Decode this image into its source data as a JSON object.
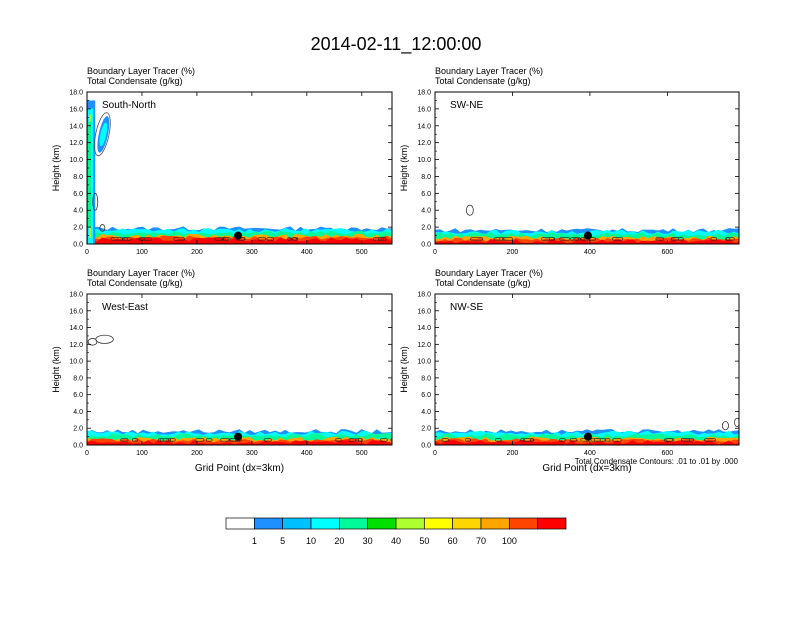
{
  "page": {
    "title": "2014-02-11_12:00:00",
    "footnote": "Total Condensate Contours: .01 to .01 by .000"
  },
  "chart_data": [
    {
      "type": "heatmap",
      "panel_label": "South-North",
      "subtitle_line1": "Boundary Layer Tracer    (%)",
      "subtitle_line2": "Total Condensate    (g/kg)",
      "xlabel": "",
      "ylabel": "Height (km)",
      "xlim": [
        0,
        555
      ],
      "ylim": [
        0,
        18
      ],
      "x_ticks": [
        0,
        100,
        200,
        300,
        400,
        500
      ],
      "y_ticks": [
        0.0,
        2.0,
        4.0,
        6.0,
        8.0,
        10.0,
        12.0,
        14.0,
        16.0,
        18.0
      ],
      "tracer_top_km": 1.7,
      "marker": {
        "x": 275,
        "y_km": 1.0
      },
      "tall_plume": {
        "x_start": 0,
        "x_end": 15,
        "top_km": 17.0
      },
      "condensate_contours": [
        {
          "x_center": 28,
          "z_center_km": 13.0,
          "x_half": 12,
          "z_half_km": 2.6
        },
        {
          "x_center": 15,
          "z_center_km": 5.0,
          "x_half": 4,
          "z_half_km": 1.0
        },
        {
          "x_center": 28,
          "z_center_km": 1.9,
          "x_half": 3,
          "z_half_km": 0.4
        }
      ]
    },
    {
      "type": "heatmap",
      "panel_label": "SW-NE",
      "subtitle_line1": "Boundary Layer Tracer    (%)",
      "subtitle_line2": "Total Condensate    (g/kg)",
      "xlabel": "",
      "ylabel": "Height (km)",
      "xlim": [
        0,
        785
      ],
      "ylim": [
        0,
        18
      ],
      "x_ticks": [
        0,
        200,
        400,
        600
      ],
      "y_ticks": [
        0.0,
        2.0,
        4.0,
        6.0,
        8.0,
        10.0,
        12.0,
        14.0,
        16.0,
        18.0
      ],
      "tracer_top_km": 1.5,
      "marker": {
        "x": 395,
        "y_km": 1.0
      },
      "condensate_contours": [
        {
          "x_center": 90,
          "z_center_km": 4.0,
          "x_half": 9,
          "z_half_km": 0.6
        }
      ]
    },
    {
      "type": "heatmap",
      "panel_label": "West-East",
      "subtitle_line1": "Boundary Layer Tracer    (%)",
      "subtitle_line2": "Total Condensate    (g/kg)",
      "xlabel": "Grid Point (dx=3km)",
      "ylabel": "Height (km)",
      "xlim": [
        0,
        555
      ],
      "ylim": [
        0,
        18
      ],
      "x_ticks": [
        0,
        100,
        200,
        300,
        400,
        500
      ],
      "y_ticks": [
        0.0,
        2.0,
        4.0,
        6.0,
        8.0,
        10.0,
        12.0,
        14.0,
        16.0,
        18.0
      ],
      "tracer_top_km": 1.5,
      "marker": {
        "x": 275,
        "y_km": 1.0
      },
      "condensate_contours": [
        {
          "x_center": 10,
          "z_center_km": 12.3,
          "x_half": 8,
          "z_half_km": 0.4
        },
        {
          "x_center": 32,
          "z_center_km": 12.6,
          "x_half": 16,
          "z_half_km": 0.5
        }
      ]
    },
    {
      "type": "heatmap",
      "panel_label": "NW-SE",
      "subtitle_line1": "Boundary Layer Tracer    (%)",
      "subtitle_line2": "Total Condensate    (g/kg)",
      "xlabel": "Grid Point (dx=3km)",
      "ylabel": "Height (km)",
      "xlim": [
        0,
        785
      ],
      "ylim": [
        0,
        18
      ],
      "x_ticks": [
        0,
        200,
        400,
        600
      ],
      "y_ticks": [
        0.0,
        2.0,
        4.0,
        6.0,
        8.0,
        10.0,
        12.0,
        14.0,
        16.0,
        18.0
      ],
      "tracer_top_km": 1.5,
      "marker": {
        "x": 395,
        "y_km": 1.0
      },
      "condensate_contours": [
        {
          "x_center": 750,
          "z_center_km": 2.3,
          "x_half": 8,
          "z_half_km": 0.5
        },
        {
          "x_center": 780,
          "z_center_km": 2.7,
          "x_half": 5,
          "z_half_km": 0.5
        }
      ]
    }
  ],
  "colorbar": {
    "labels": [
      "1",
      "5",
      "10",
      "20",
      "30",
      "40",
      "50",
      "60",
      "70",
      "100"
    ],
    "colors": [
      "#ffffff",
      "#1e90ff",
      "#00bfff",
      "#00ffff",
      "#00fa9a",
      "#00e000",
      "#adff2f",
      "#ffff00",
      "#ffd700",
      "#ffa500",
      "#ff4500",
      "#ff0000"
    ]
  }
}
